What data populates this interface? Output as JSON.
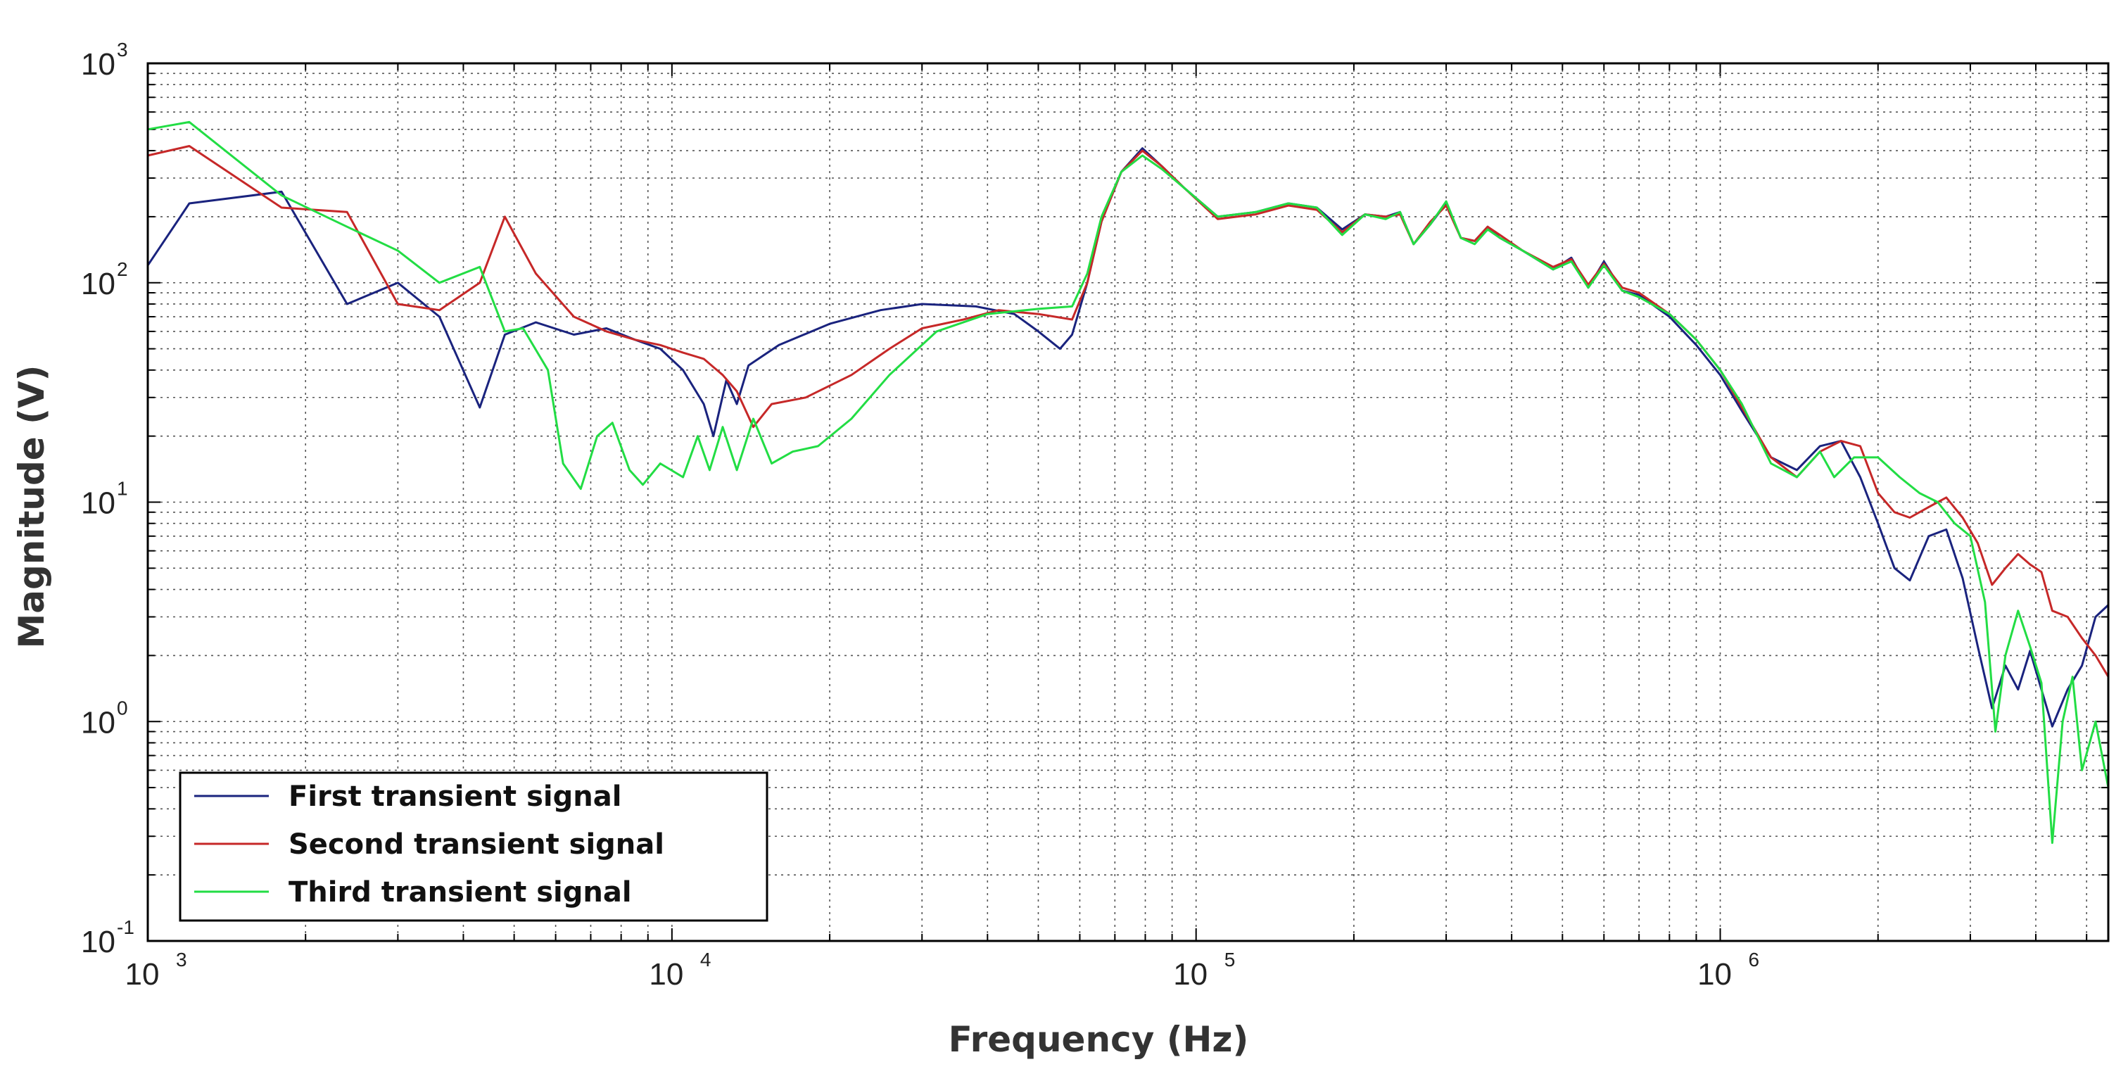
{
  "chart_data": {
    "type": "line",
    "xlabel": "Frequency (Hz)",
    "ylabel": "Magnitude (V)",
    "xscale": "log",
    "yscale": "log",
    "xlim": [
      1000,
      5500000
    ],
    "ylim": [
      0.1,
      1000
    ],
    "grid": true,
    "legend_position": "bottom-left",
    "x_ticks": [
      {
        "base": "10",
        "exp": "3"
      },
      {
        "base": "10",
        "exp": "4"
      },
      {
        "base": "10",
        "exp": "5"
      },
      {
        "base": "10",
        "exp": "6"
      }
    ],
    "y_ticks": [
      {
        "base": "10",
        "exp": "-1"
      },
      {
        "base": "10",
        "exp": "0"
      },
      {
        "base": "10",
        "exp": "1"
      },
      {
        "base": "10",
        "exp": "2"
      },
      {
        "base": "10",
        "exp": "3"
      }
    ],
    "series": [
      {
        "name": "First transient signal",
        "color": "#1a237e",
        "points": [
          [
            1000,
            120
          ],
          [
            1200,
            230
          ],
          [
            1800,
            260
          ],
          [
            2400,
            80
          ],
          [
            3000,
            100
          ],
          [
            3600,
            70
          ],
          [
            4300,
            27
          ],
          [
            4800,
            58
          ],
          [
            5500,
            66
          ],
          [
            6500,
            58
          ],
          [
            7500,
            62
          ],
          [
            8500,
            55
          ],
          [
            9500,
            50
          ],
          [
            10500,
            40
          ],
          [
            11500,
            28
          ],
          [
            12000,
            20
          ],
          [
            12700,
            36
          ],
          [
            13300,
            28
          ],
          [
            14000,
            42
          ],
          [
            16000,
            52
          ],
          [
            20000,
            65
          ],
          [
            25000,
            75
          ],
          [
            30000,
            80
          ],
          [
            38000,
            78
          ],
          [
            45000,
            72
          ],
          [
            50000,
            60
          ],
          [
            55000,
            50
          ],
          [
            58000,
            58
          ],
          [
            62000,
            100
          ],
          [
            66000,
            190
          ],
          [
            72000,
            320
          ],
          [
            79000,
            410
          ],
          [
            86000,
            340
          ],
          [
            95000,
            270
          ],
          [
            110000,
            200
          ],
          [
            130000,
            210
          ],
          [
            150000,
            230
          ],
          [
            170000,
            220
          ],
          [
            190000,
            175
          ],
          [
            210000,
            205
          ],
          [
            230000,
            200
          ],
          [
            245000,
            210
          ],
          [
            260000,
            150
          ],
          [
            280000,
            185
          ],
          [
            300000,
            230
          ],
          [
            320000,
            160
          ],
          [
            340000,
            155
          ],
          [
            360000,
            180
          ],
          [
            380000,
            160
          ],
          [
            420000,
            140
          ],
          [
            480000,
            115
          ],
          [
            520000,
            130
          ],
          [
            560000,
            95
          ],
          [
            600000,
            125
          ],
          [
            650000,
            92
          ],
          [
            700000,
            88
          ],
          [
            800000,
            70
          ],
          [
            900000,
            52
          ],
          [
            1000000,
            38
          ],
          [
            1100000,
            26
          ],
          [
            1250000,
            16
          ],
          [
            1400000,
            14
          ],
          [
            1550000,
            18
          ],
          [
            1700000,
            19
          ],
          [
            1850000,
            13
          ],
          [
            2000000,
            8
          ],
          [
            2150000,
            5
          ],
          [
            2300000,
            4.4
          ],
          [
            2500000,
            7
          ],
          [
            2700000,
            7.5
          ],
          [
            2900000,
            4.5
          ],
          [
            3100000,
            2.2
          ],
          [
            3300000,
            1.15
          ],
          [
            3500000,
            1.8
          ],
          [
            3700000,
            1.4
          ],
          [
            3900000,
            2.1
          ],
          [
            4100000,
            1.4
          ],
          [
            4300000,
            0.95
          ],
          [
            4600000,
            1.4
          ],
          [
            4900000,
            1.8
          ],
          [
            5200000,
            3
          ],
          [
            5500000,
            3.4
          ]
        ]
      },
      {
        "name": "Second transient signal",
        "color": "#c62828",
        "points": [
          [
            1000,
            380
          ],
          [
            1200,
            420
          ],
          [
            1800,
            220
          ],
          [
            2400,
            210
          ],
          [
            3000,
            80
          ],
          [
            3600,
            75
          ],
          [
            4300,
            100
          ],
          [
            4800,
            200
          ],
          [
            5500,
            110
          ],
          [
            6500,
            70
          ],
          [
            7500,
            60
          ],
          [
            8500,
            55
          ],
          [
            9500,
            52
          ],
          [
            10500,
            48
          ],
          [
            11500,
            45
          ],
          [
            12500,
            38
          ],
          [
            13300,
            32
          ],
          [
            14300,
            22
          ],
          [
            15500,
            28
          ],
          [
            18000,
            30
          ],
          [
            22000,
            38
          ],
          [
            26000,
            50
          ],
          [
            30000,
            62
          ],
          [
            36000,
            68
          ],
          [
            42000,
            75
          ],
          [
            50000,
            72
          ],
          [
            58000,
            68
          ],
          [
            62000,
            100
          ],
          [
            66000,
            190
          ],
          [
            72000,
            320
          ],
          [
            79000,
            400
          ],
          [
            86000,
            340
          ],
          [
            95000,
            270
          ],
          [
            110000,
            195
          ],
          [
            130000,
            205
          ],
          [
            150000,
            225
          ],
          [
            170000,
            215
          ],
          [
            190000,
            170
          ],
          [
            210000,
            205
          ],
          [
            230000,
            200
          ],
          [
            245000,
            205
          ],
          [
            260000,
            150
          ],
          [
            280000,
            190
          ],
          [
            300000,
            225
          ],
          [
            320000,
            160
          ],
          [
            340000,
            155
          ],
          [
            360000,
            180
          ],
          [
            380000,
            165
          ],
          [
            420000,
            140
          ],
          [
            480000,
            118
          ],
          [
            520000,
            128
          ],
          [
            560000,
            98
          ],
          [
            600000,
            122
          ],
          [
            650000,
            95
          ],
          [
            700000,
            90
          ],
          [
            800000,
            72
          ],
          [
            900000,
            55
          ],
          [
            1000000,
            40
          ],
          [
            1100000,
            27
          ],
          [
            1250000,
            16
          ],
          [
            1400000,
            13
          ],
          [
            1550000,
            17
          ],
          [
            1700000,
            19
          ],
          [
            1850000,
            18
          ],
          [
            2000000,
            11
          ],
          [
            2150000,
            9
          ],
          [
            2300000,
            8.5
          ],
          [
            2500000,
            9.5
          ],
          [
            2700000,
            10.5
          ],
          [
            2900000,
            8.5
          ],
          [
            3100000,
            6.5
          ],
          [
            3300000,
            4.2
          ],
          [
            3500000,
            5
          ],
          [
            3700000,
            5.8
          ],
          [
            3900000,
            5.2
          ],
          [
            4100000,
            4.8
          ],
          [
            4300000,
            3.2
          ],
          [
            4600000,
            3
          ],
          [
            4900000,
            2.4
          ],
          [
            5200000,
            2
          ],
          [
            5500000,
            1.6
          ]
        ]
      },
      {
        "name": "Third transient signal",
        "color": "#22dd44",
        "points": [
          [
            1000,
            500
          ],
          [
            1200,
            540
          ],
          [
            1800,
            250
          ],
          [
            2400,
            180
          ],
          [
            3000,
            140
          ],
          [
            3600,
            100
          ],
          [
            4300,
            118
          ],
          [
            4800,
            60
          ],
          [
            5200,
            62
          ],
          [
            5800,
            40
          ],
          [
            6200,
            15
          ],
          [
            6700,
            11.5
          ],
          [
            7200,
            20
          ],
          [
            7700,
            23
          ],
          [
            8300,
            14
          ],
          [
            8800,
            12
          ],
          [
            9500,
            15
          ],
          [
            10500,
            13
          ],
          [
            11200,
            20
          ],
          [
            11800,
            14
          ],
          [
            12500,
            22
          ],
          [
            13300,
            14
          ],
          [
            14300,
            24
          ],
          [
            15500,
            15
          ],
          [
            17000,
            17
          ],
          [
            19000,
            18
          ],
          [
            22000,
            24
          ],
          [
            26000,
            38
          ],
          [
            32000,
            60
          ],
          [
            40000,
            72
          ],
          [
            50000,
            76
          ],
          [
            58000,
            78
          ],
          [
            62000,
            110
          ],
          [
            66000,
            200
          ],
          [
            72000,
            320
          ],
          [
            79000,
            380
          ],
          [
            86000,
            330
          ],
          [
            95000,
            270
          ],
          [
            110000,
            200
          ],
          [
            130000,
            210
          ],
          [
            150000,
            230
          ],
          [
            170000,
            220
          ],
          [
            190000,
            165
          ],
          [
            210000,
            205
          ],
          [
            230000,
            195
          ],
          [
            245000,
            210
          ],
          [
            260000,
            150
          ],
          [
            280000,
            185
          ],
          [
            300000,
            235
          ],
          [
            320000,
            160
          ],
          [
            340000,
            150
          ],
          [
            360000,
            175
          ],
          [
            380000,
            160
          ],
          [
            420000,
            140
          ],
          [
            480000,
            115
          ],
          [
            520000,
            125
          ],
          [
            560000,
            95
          ],
          [
            600000,
            120
          ],
          [
            650000,
            92
          ],
          [
            700000,
            86
          ],
          [
            800000,
            72
          ],
          [
            900000,
            55
          ],
          [
            1000000,
            40
          ],
          [
            1100000,
            28
          ],
          [
            1250000,
            15
          ],
          [
            1400000,
            13
          ],
          [
            1550000,
            17
          ],
          [
            1650000,
            13
          ],
          [
            1800000,
            16
          ],
          [
            2000000,
            16
          ],
          [
            2200000,
            13
          ],
          [
            2400000,
            11
          ],
          [
            2600000,
            10
          ],
          [
            2800000,
            8
          ],
          [
            3000000,
            7
          ],
          [
            3200000,
            3.5
          ],
          [
            3350000,
            0.9
          ],
          [
            3500000,
            2
          ],
          [
            3700000,
            3.2
          ],
          [
            3900000,
            2.2
          ],
          [
            4100000,
            1.5
          ],
          [
            4300000,
            0.28
          ],
          [
            4500000,
            1
          ],
          [
            4700000,
            1.6
          ],
          [
            4900000,
            0.6
          ],
          [
            5200000,
            1
          ],
          [
            5500000,
            0.5
          ]
        ]
      }
    ]
  }
}
